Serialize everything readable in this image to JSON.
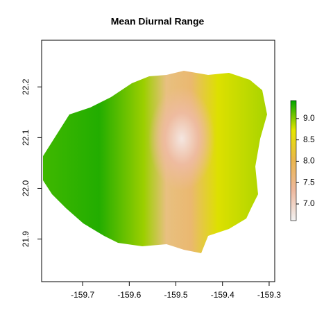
{
  "chart_data": {
    "type": "raster",
    "title": "Mean Diurnal Range",
    "xlim": [
      -159.788,
      -159.288
    ],
    "xticks": [
      {
        "value": -159.7,
        "label": "-159.7"
      },
      {
        "value": -159.6,
        "label": "-159.6"
      },
      {
        "value": -159.5,
        "label": "-159.5"
      },
      {
        "value": -159.4,
        "label": "-159.4"
      },
      {
        "value": -159.3,
        "label": "-159.3"
      }
    ],
    "ylim": [
      21.816,
      22.292
    ],
    "yticks": [
      {
        "value": 21.9,
        "label": "21.9"
      },
      {
        "value": 22.0,
        "label": "22.0"
      },
      {
        "value": 22.1,
        "label": "22.1"
      },
      {
        "value": 22.2,
        "label": "22.2"
      }
    ],
    "colorbar": {
      "lim": [
        6.61,
        9.42
      ],
      "ticks": [
        {
          "value": 7.0,
          "label": "7.0"
        },
        {
          "value": 7.5,
          "label": "7.5"
        },
        {
          "value": 8.0,
          "label": "8.0"
        },
        {
          "value": 8.5,
          "label": "8.5"
        },
        {
          "value": 9.0,
          "label": "9.0"
        }
      ],
      "colors": [
        "#F2F2F2",
        "#EEB99F",
        "#EAB64E",
        "#E6E600",
        "#00A600"
      ]
    }
  }
}
